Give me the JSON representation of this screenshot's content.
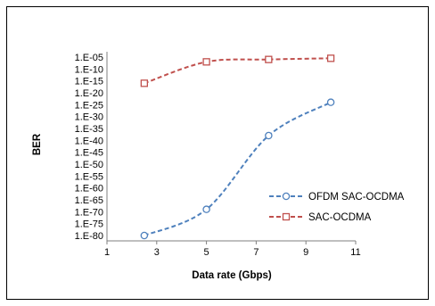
{
  "chart_data": {
    "type": "line",
    "title": "",
    "xlabel": "Data rate (Gbps)",
    "ylabel": "BER",
    "xlim": [
      1,
      11
    ],
    "x_ticks": [
      "1",
      "3",
      "5",
      "7",
      "9",
      "11"
    ],
    "ylim": [
      -80,
      -5
    ],
    "y_scale": "log10",
    "y_ticks": [
      "1.E-05",
      "1.E-10",
      "1.E-15",
      "1.E-20",
      "1.E-25",
      "1.E-30",
      "1.E-35",
      "1.E-40",
      "1.E-45",
      "1.E-50",
      "1.E-55",
      "1.E-60",
      "1.E-65",
      "1.E-70",
      "1.E-75",
      "1.E-80"
    ],
    "x": [
      2.5,
      5,
      7.5,
      10
    ],
    "series": [
      {
        "name": "OFDM SAC-OCDMA",
        "y": [
          "1.E-80",
          "1.E-69",
          "1.E-38",
          "1.E-24"
        ],
        "log10_values": [
          -80,
          -69,
          -38,
          -24
        ],
        "color": "#4f81bd",
        "marker": "circle",
        "line": "dashed"
      },
      {
        "name": "SAC-OCDMA",
        "y": [
          "1.E-16",
          "1.E-07",
          "1.E-06",
          "1.E-05.5"
        ],
        "log10_values": [
          -16,
          -7,
          -6,
          -5.5
        ],
        "color": "#c0504d",
        "marker": "square",
        "line": "dashed"
      }
    ],
    "grid": false,
    "legend_position": "right"
  }
}
